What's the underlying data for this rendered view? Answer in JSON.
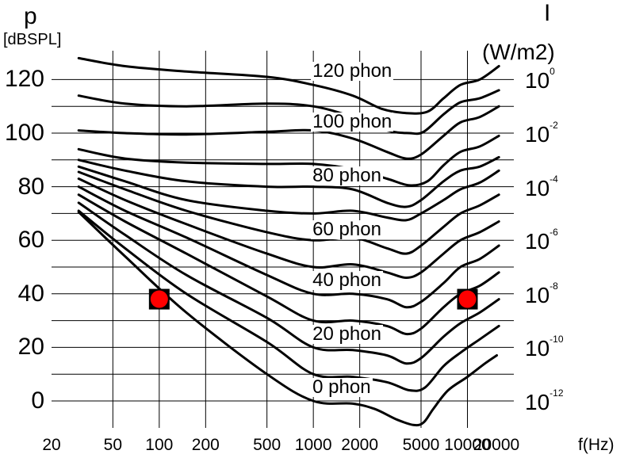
{
  "chart_data": {
    "type": "line",
    "title": "",
    "y_left": {
      "label": "p",
      "unit": "[dBSPL]",
      "ticks": [
        "120",
        "100",
        "80",
        "60",
        "40",
        "20",
        "0"
      ],
      "tick_values": [
        120,
        100,
        80,
        60,
        40,
        20,
        0
      ],
      "range": [
        -10,
        130
      ]
    },
    "y_right": {
      "label": "I",
      "unit": "(W/m2)",
      "ticks": [
        {
          "base": "10",
          "exp": "0",
          "db": 120
        },
        {
          "base": "10",
          "exp": "-2",
          "db": 100
        },
        {
          "base": "10",
          "exp": "-4",
          "db": 80
        },
        {
          "base": "10",
          "exp": "-6",
          "db": 60
        },
        {
          "base": "10",
          "exp": "-8",
          "db": 40
        },
        {
          "base": "10",
          "exp": "-10",
          "db": 20
        },
        {
          "base": "10",
          "exp": "-12",
          "db": 0
        }
      ]
    },
    "x": {
      "label": "f(Hz)",
      "scale": "log",
      "ticks": [
        "20",
        "50",
        "100",
        "200",
        "500",
        "1000",
        "2000",
        "5000",
        "10000",
        "20000"
      ],
      "tick_values": [
        20,
        50,
        100,
        200,
        500,
        1000,
        2000,
        5000,
        10000,
        20000
      ]
    },
    "series": [
      {
        "name": "120 phon",
        "labeled": true,
        "points": [
          [
            30,
            128
          ],
          [
            60,
            125
          ],
          [
            150,
            123
          ],
          [
            500,
            121
          ],
          [
            1000,
            118
          ],
          [
            1800,
            114
          ],
          [
            2800,
            109
          ],
          [
            4000,
            107.5
          ],
          [
            5500,
            108
          ],
          [
            7000,
            113
          ],
          [
            9000,
            118
          ],
          [
            12000,
            120
          ],
          [
            16000,
            125
          ]
        ]
      },
      {
        "name": "110",
        "labeled": false,
        "points": [
          [
            30,
            114
          ],
          [
            60,
            111
          ],
          [
            150,
            110
          ],
          [
            500,
            111
          ],
          [
            1000,
            110
          ],
          [
            1800,
            106
          ],
          [
            3000,
            101
          ],
          [
            4200,
            100
          ],
          [
            5200,
            100.5
          ],
          [
            7000,
            107
          ],
          [
            9000,
            111.5
          ],
          [
            12000,
            113
          ],
          [
            16000,
            116
          ]
        ]
      },
      {
        "name": "100 phon",
        "labeled": true,
        "points": [
          [
            30,
            101
          ],
          [
            60,
            100
          ],
          [
            150,
            99.5
          ],
          [
            500,
            100.5
          ],
          [
            1000,
            101
          ],
          [
            1800,
            98
          ],
          [
            3000,
            93
          ],
          [
            4000,
            90.5
          ],
          [
            5000,
            92
          ],
          [
            7000,
            99
          ],
          [
            9000,
            104
          ],
          [
            12000,
            106
          ],
          [
            16000,
            110
          ]
        ]
      },
      {
        "name": "90",
        "labeled": false,
        "points": [
          [
            30,
            94
          ],
          [
            60,
            90.5
          ],
          [
            150,
            89
          ],
          [
            500,
            88.5
          ],
          [
            1000,
            88.5
          ],
          [
            1800,
            86.5
          ],
          [
            3000,
            83
          ],
          [
            4200,
            80.5
          ],
          [
            5500,
            82
          ],
          [
            7000,
            88
          ],
          [
            9000,
            93
          ],
          [
            12000,
            95
          ],
          [
            16000,
            99
          ]
        ]
      },
      {
        "name": "80 phon",
        "labeled": true,
        "points": [
          [
            30,
            90
          ],
          [
            60,
            86
          ],
          [
            150,
            82
          ],
          [
            500,
            80
          ],
          [
            1000,
            80
          ],
          [
            1800,
            79
          ],
          [
            3000,
            74
          ],
          [
            4000,
            72.5
          ],
          [
            5000,
            75
          ],
          [
            7000,
            82
          ],
          [
            9000,
            86
          ],
          [
            12000,
            87.5
          ],
          [
            16000,
            91
          ]
        ]
      },
      {
        "name": "70",
        "labeled": false,
        "points": [
          [
            30,
            87.5
          ],
          [
            60,
            82
          ],
          [
            150,
            75
          ],
          [
            500,
            71
          ],
          [
            1000,
            70
          ],
          [
            1800,
            71
          ],
          [
            3000,
            68.5
          ],
          [
            4000,
            67.5
          ],
          [
            5000,
            70
          ],
          [
            7000,
            75
          ],
          [
            9000,
            79
          ],
          [
            12000,
            81.5
          ],
          [
            16000,
            86
          ]
        ]
      },
      {
        "name": "60 phon",
        "labeled": true,
        "points": [
          [
            30,
            85.5
          ],
          [
            60,
            79
          ],
          [
            150,
            71
          ],
          [
            500,
            63
          ],
          [
            1000,
            60
          ],
          [
            1800,
            61
          ],
          [
            3000,
            57
          ],
          [
            4000,
            55
          ],
          [
            5000,
            58
          ],
          [
            7000,
            65
          ],
          [
            9000,
            70
          ],
          [
            12000,
            73
          ],
          [
            16000,
            77
          ]
        ]
      },
      {
        "name": "50",
        "labeled": false,
        "points": [
          [
            30,
            83
          ],
          [
            60,
            75
          ],
          [
            150,
            66
          ],
          [
            500,
            55
          ],
          [
            1000,
            50
          ],
          [
            1800,
            51
          ],
          [
            3000,
            48
          ],
          [
            4000,
            46
          ],
          [
            5000,
            48
          ],
          [
            7000,
            55
          ],
          [
            9000,
            60
          ],
          [
            12000,
            63
          ],
          [
            16000,
            67
          ]
        ]
      },
      {
        "name": "40 phon",
        "labeled": true,
        "points": [
          [
            30,
            80
          ],
          [
            60,
            71
          ],
          [
            150,
            61
          ],
          [
            500,
            47
          ],
          [
            1000,
            40
          ],
          [
            1800,
            40
          ],
          [
            3000,
            38
          ],
          [
            4000,
            35
          ],
          [
            5000,
            37
          ],
          [
            7000,
            44
          ],
          [
            9000,
            50
          ],
          [
            12000,
            53
          ],
          [
            16000,
            58
          ]
        ]
      },
      {
        "name": "30",
        "labeled": false,
        "points": [
          [
            30,
            77
          ],
          [
            60,
            67
          ],
          [
            150,
            55
          ],
          [
            500,
            39
          ],
          [
            1000,
            30
          ],
          [
            1800,
            30
          ],
          [
            3000,
            28
          ],
          [
            4000,
            25
          ],
          [
            5000,
            27
          ],
          [
            7000,
            35
          ],
          [
            9000,
            40
          ],
          [
            12000,
            43
          ],
          [
            16000,
            48
          ]
        ]
      },
      {
        "name": "20 phon",
        "labeled": true,
        "points": [
          [
            30,
            74
          ],
          [
            60,
            62
          ],
          [
            150,
            47
          ],
          [
            500,
            31
          ],
          [
            1000,
            20
          ],
          [
            1800,
            19
          ],
          [
            3000,
            17
          ],
          [
            4000,
            14
          ],
          [
            5000,
            16
          ],
          [
            7000,
            24
          ],
          [
            9000,
            29
          ],
          [
            12000,
            33
          ],
          [
            16000,
            38
          ]
        ]
      },
      {
        "name": "10",
        "labeled": false,
        "points": [
          [
            30,
            71
          ],
          [
            60,
            57
          ],
          [
            150,
            40
          ],
          [
            500,
            22
          ],
          [
            1000,
            10
          ],
          [
            1800,
            9
          ],
          [
            3000,
            7
          ],
          [
            4200,
            4
          ],
          [
            5300,
            5
          ],
          [
            7000,
            13
          ],
          [
            9000,
            18
          ],
          [
            12000,
            23
          ],
          [
            16000,
            28
          ]
        ]
      },
      {
        "name": "0 phon",
        "labeled": true,
        "points": [
          [
            30,
            70.5
          ],
          [
            60,
            54
          ],
          [
            150,
            33
          ],
          [
            500,
            10
          ],
          [
            1000,
            0
          ],
          [
            1800,
            -1
          ],
          [
            2500,
            -3
          ],
          [
            3500,
            -7
          ],
          [
            4500,
            -9
          ],
          [
            5200,
            -8
          ],
          [
            6000,
            -3
          ],
          [
            7500,
            4
          ],
          [
            10000,
            9
          ],
          [
            13000,
            14
          ],
          [
            15500,
            17
          ]
        ]
      }
    ],
    "markers": [
      {
        "freq": 100,
        "db": 38,
        "shape": "square-circle",
        "square_color": "#000000",
        "circle_color": "#ff0000"
      },
      {
        "freq": 10000,
        "db": 38,
        "shape": "square-circle",
        "square_color": "#000000",
        "circle_color": "#ff0000"
      }
    ],
    "grid": true
  },
  "colors": {
    "line": "#000000",
    "grid": "#000000",
    "marker_fill": "#ff0000",
    "marker_box": "#000000",
    "background": "#ffffff"
  }
}
